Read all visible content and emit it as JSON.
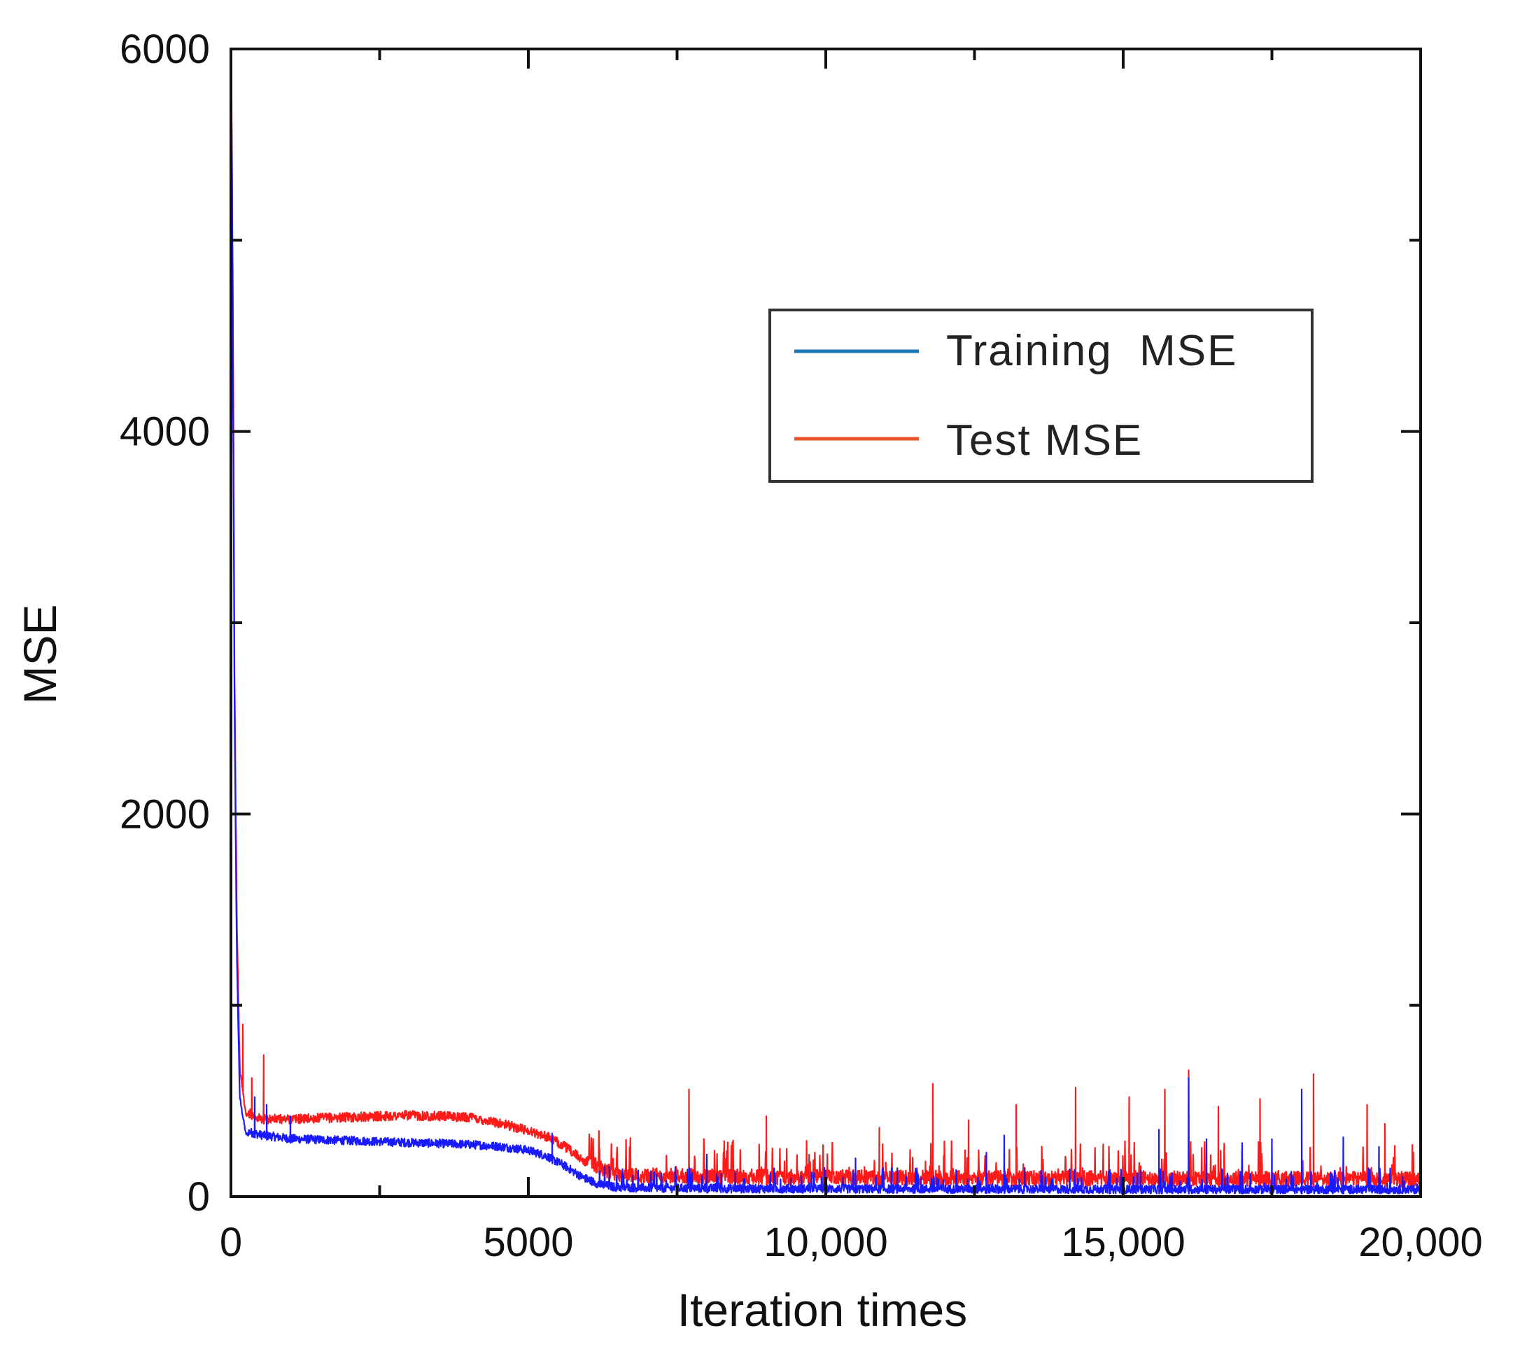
{
  "chart_data": {
    "type": "line",
    "title": "",
    "xlabel": "Iteration times",
    "ylabel": "MSE",
    "xlim": [
      0,
      20000
    ],
    "ylim": [
      0,
      6000
    ],
    "x_ticks": [
      0,
      5000,
      10000,
      15000,
      20000
    ],
    "x_tick_labels": [
      "0",
      "5000",
      "10,000",
      "15,000",
      "20,000"
    ],
    "y_ticks": [
      0,
      2000,
      4000,
      6000
    ],
    "y_tick_labels": [
      "0",
      "2000",
      "4000",
      "6000"
    ],
    "legend_position": "top-right",
    "series": [
      {
        "name": "Training  MSE",
        "legend_color": "#1f77b4",
        "line_color": "#1a1aff",
        "x": [
          0,
          30,
          60,
          100,
          150,
          250,
          500,
          1000,
          2000,
          3000,
          4000,
          4500,
          5000,
          5300,
          5600,
          5900,
          6200,
          6500,
          7000,
          8000,
          10000,
          12000,
          14000,
          16000,
          18000,
          20000
        ],
        "y": [
          6000,
          4500,
          2500,
          1200,
          500,
          320,
          300,
          280,
          270,
          260,
          250,
          240,
          220,
          190,
          140,
          80,
          40,
          25,
          22,
          20,
          18,
          17,
          16,
          15,
          15,
          15
        ],
        "spikes": [
          [
            400,
            520
          ],
          [
            600,
            480
          ],
          [
            1000,
            420
          ],
          [
            5400,
            330
          ],
          [
            8000,
            220
          ],
          [
            10500,
            200
          ],
          [
            12700,
            230
          ],
          [
            13000,
            320
          ],
          [
            15600,
            350
          ],
          [
            16100,
            620
          ],
          [
            16400,
            300
          ],
          [
            17000,
            280
          ],
          [
            17500,
            300
          ],
          [
            18000,
            560
          ],
          [
            18700,
            310
          ],
          [
            19300,
            260
          ]
        ]
      },
      {
        "name": "Test MSE",
        "legend_color": "#e8542a",
        "line_color": "#ff1a1a",
        "x": [
          0,
          30,
          60,
          100,
          150,
          250,
          500,
          1000,
          2000,
          3000,
          4000,
          4500,
          5000,
          5300,
          5600,
          5900,
          6200,
          6500,
          7000,
          8000,
          10000,
          12000,
          14000,
          16000,
          18000,
          20000
        ],
        "y": [
          6000,
          4700,
          2700,
          1400,
          650,
          420,
          380,
          380,
          390,
          400,
          390,
          360,
          320,
          290,
          240,
          170,
          110,
          80,
          70,
          65,
          60,
          58,
          55,
          55,
          52,
          50
        ],
        "spikes": [
          [
            200,
            900
          ],
          [
            350,
            620
          ],
          [
            550,
            740
          ],
          [
            7700,
            560
          ],
          [
            9000,
            420
          ],
          [
            10900,
            360
          ],
          [
            11800,
            590
          ],
          [
            12400,
            400
          ],
          [
            13200,
            480
          ],
          [
            14200,
            570
          ],
          [
            15100,
            520
          ],
          [
            15700,
            560
          ],
          [
            16100,
            660
          ],
          [
            16600,
            470
          ],
          [
            17300,
            510
          ],
          [
            18200,
            640
          ],
          [
            19100,
            480
          ],
          [
            19400,
            380
          ]
        ]
      }
    ]
  }
}
